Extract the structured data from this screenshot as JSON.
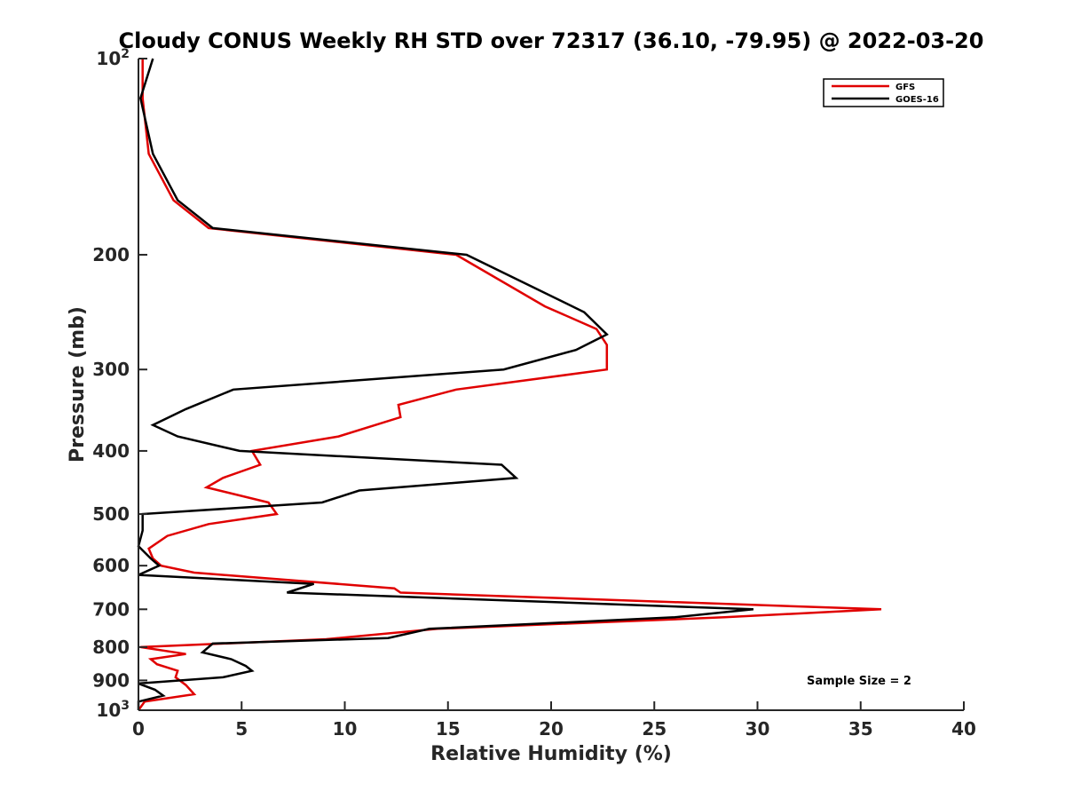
{
  "chart_data": {
    "type": "line",
    "title": "Cloudy CONUS Weekly RH STD over 72317 (36.10, -79.95) @ 2022-03-20",
    "xlabel": "Relative Humidity (%)",
    "ylabel": "Pressure (mb)",
    "xlim": [
      0,
      40
    ],
    "ylim": [
      100,
      1000
    ],
    "yscale": "log",
    "yaxis_reversed": true,
    "xticks": [
      0,
      5,
      10,
      15,
      20,
      25,
      30,
      35,
      40
    ],
    "yticks": [
      {
        "value": 100,
        "label": "10",
        "sup": "2"
      },
      {
        "value": 200,
        "label": "200",
        "sup": ""
      },
      {
        "value": 300,
        "label": "300",
        "sup": ""
      },
      {
        "value": 400,
        "label": "400",
        "sup": ""
      },
      {
        "value": 500,
        "label": "500",
        "sup": ""
      },
      {
        "value": 600,
        "label": "600",
        "sup": ""
      },
      {
        "value": 700,
        "label": "700",
        "sup": ""
      },
      {
        "value": 800,
        "label": "800",
        "sup": ""
      },
      {
        "value": 900,
        "label": "900",
        "sup": ""
      },
      {
        "value": 1000,
        "label": "10",
        "sup": "3"
      }
    ],
    "grid": false,
    "legend_position": "top-right",
    "series": [
      {
        "name": "GFS",
        "color": "#e00000",
        "points": [
          [
            0.2,
            100
          ],
          [
            0.2,
            115
          ],
          [
            0.5,
            140
          ],
          [
            1.7,
            165
          ],
          [
            3.4,
            182
          ],
          [
            15.4,
            200
          ],
          [
            19.7,
            240
          ],
          [
            22.2,
            260
          ],
          [
            22.7,
            275
          ],
          [
            22.7,
            300
          ],
          [
            15.4,
            322
          ],
          [
            12.6,
            340
          ],
          [
            12.7,
            355
          ],
          [
            9.7,
            380
          ],
          [
            5.5,
            400
          ],
          [
            5.9,
            420
          ],
          [
            4.1,
            440
          ],
          [
            3.3,
            455
          ],
          [
            6.3,
            480
          ],
          [
            6.7,
            500
          ],
          [
            3.4,
            518
          ],
          [
            1.4,
            540
          ],
          [
            0.5,
            565
          ],
          [
            0.7,
            585
          ],
          [
            1.1,
            600
          ],
          [
            2.7,
            615
          ],
          [
            12.4,
            650
          ],
          [
            12.7,
            660
          ],
          [
            36.0,
            700
          ],
          [
            28.4,
            720
          ],
          [
            14.5,
            750
          ],
          [
            9.1,
            778
          ],
          [
            0.1,
            800
          ],
          [
            2.3,
            820
          ],
          [
            0.6,
            835
          ],
          [
            0.9,
            850
          ],
          [
            1.9,
            870
          ],
          [
            1.8,
            890
          ],
          [
            2.3,
            915
          ],
          [
            2.7,
            945
          ],
          [
            0.3,
            970
          ],
          [
            0.0,
            1000
          ]
        ]
      },
      {
        "name": "GOES-16",
        "color": "#000000",
        "points": [
          [
            0.7,
            100
          ],
          [
            0.1,
            115
          ],
          [
            0.7,
            140
          ],
          [
            1.9,
            165
          ],
          [
            3.6,
            182
          ],
          [
            15.9,
            200
          ],
          [
            21.6,
            245
          ],
          [
            22.7,
            265
          ],
          [
            21.2,
            280
          ],
          [
            17.7,
            300
          ],
          [
            4.6,
            322
          ],
          [
            2.3,
            345
          ],
          [
            0.7,
            365
          ],
          [
            1.9,
            380
          ],
          [
            4.9,
            400
          ],
          [
            17.6,
            420
          ],
          [
            18.3,
            440
          ],
          [
            10.7,
            460
          ],
          [
            8.9,
            480
          ],
          [
            0.2,
            500
          ],
          [
            0.2,
            530
          ],
          [
            0.0,
            560
          ],
          [
            0.6,
            585
          ],
          [
            1.0,
            600
          ],
          [
            0.0,
            620
          ],
          [
            8.5,
            640
          ],
          [
            7.2,
            660
          ],
          [
            29.8,
            700
          ],
          [
            26.0,
            720
          ],
          [
            14.1,
            750
          ],
          [
            12.1,
            775
          ],
          [
            3.6,
            790
          ],
          [
            3.1,
            815
          ],
          [
            4.5,
            835
          ],
          [
            5.2,
            855
          ],
          [
            5.5,
            870
          ],
          [
            4.1,
            890
          ],
          [
            0.0,
            910
          ],
          [
            0.8,
            930
          ],
          [
            1.2,
            950
          ],
          [
            0.0,
            970
          ],
          [
            0.0,
            1000
          ]
        ]
      }
    ],
    "annotation": "Sample Size = 2"
  }
}
